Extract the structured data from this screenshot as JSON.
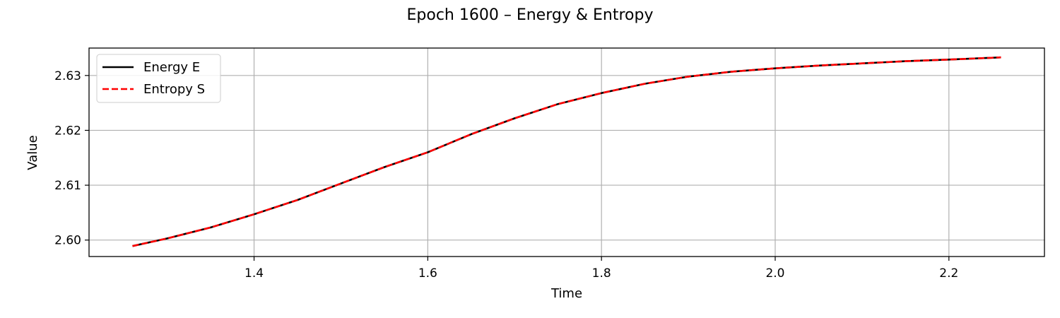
{
  "chart_data": {
    "type": "line",
    "title": "Epoch 1600 – Energy & Entropy",
    "xlabel": "Time",
    "ylabel": "Value",
    "xlim": [
      1.21,
      2.31
    ],
    "ylim": [
      2.597,
      2.635
    ],
    "x_ticks": [
      1.4,
      1.6,
      1.8,
      2.0,
      2.2
    ],
    "x_tick_labels": [
      "1.4",
      "1.6",
      "1.8",
      "2.0",
      "2.2"
    ],
    "y_ticks": [
      2.6,
      2.61,
      2.62,
      2.63
    ],
    "y_tick_labels": [
      "2.60",
      "2.61",
      "2.62",
      "2.63"
    ],
    "grid": true,
    "legend_position": "upper-left",
    "x": [
      1.26,
      1.3,
      1.35,
      1.4,
      1.45,
      1.5,
      1.55,
      1.6,
      1.65,
      1.7,
      1.75,
      1.8,
      1.85,
      1.9,
      1.95,
      2.0,
      2.05,
      2.1,
      2.15,
      2.2,
      2.26
    ],
    "series": [
      {
        "name": "Energy E",
        "color": "#000000",
        "style": "solid",
        "values": [
          2.5989,
          2.6003,
          2.6023,
          2.6047,
          2.6073,
          2.6103,
          2.6133,
          2.616,
          2.6193,
          2.6222,
          2.6248,
          2.6268,
          2.6285,
          2.6298,
          2.6307,
          2.6313,
          2.6318,
          2.6322,
          2.6326,
          2.6329,
          2.6333
        ]
      },
      {
        "name": "Entropy S",
        "color": "#ff0000",
        "style": "dashed",
        "values": [
          2.5989,
          2.6003,
          2.6023,
          2.6047,
          2.6073,
          2.6103,
          2.6133,
          2.616,
          2.6193,
          2.6222,
          2.6248,
          2.6268,
          2.6285,
          2.6298,
          2.6307,
          2.6313,
          2.6318,
          2.6322,
          2.6326,
          2.6329,
          2.6333
        ]
      }
    ]
  }
}
